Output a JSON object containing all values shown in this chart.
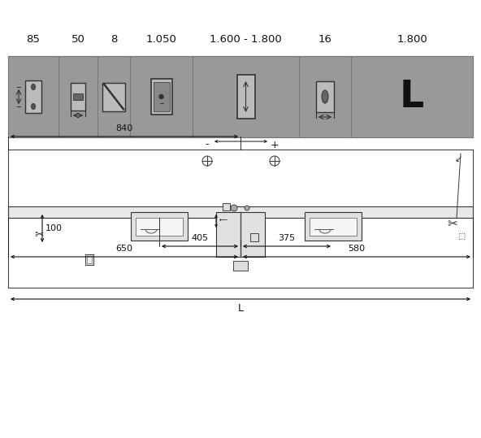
{
  "bg_color": "#ffffff",
  "labels": [
    "85",
    "50",
    "8",
    "1.050",
    "1.600 - 1.800",
    "16",
    "1.800"
  ],
  "line_color": "#222222",
  "panel_color": "#999999",
  "col_positions": [
    10,
    72,
    120,
    160,
    237,
    368,
    432,
    582
  ],
  "dim_840": "840",
  "dim_405": "405",
  "dim_375": "375",
  "dim_650": "650",
  "dim_580": "580",
  "dim_100": "100",
  "dim_L": "L"
}
